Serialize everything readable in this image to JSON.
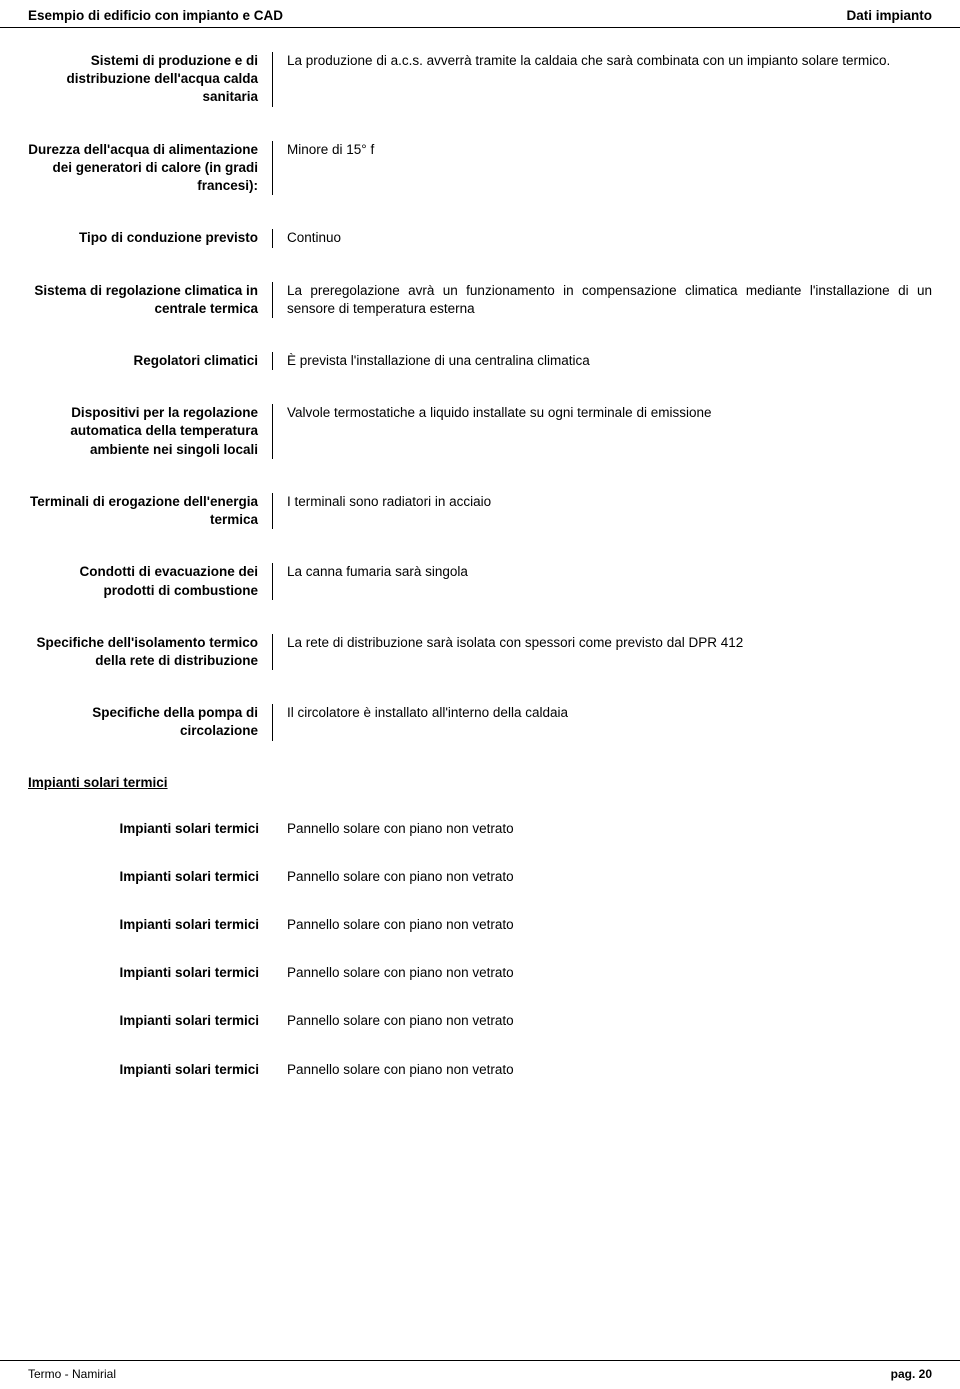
{
  "header": {
    "left": "Esempio di edificio con impianto e CAD",
    "right": "Dati impianto"
  },
  "rows": [
    {
      "label": "Sistemi di produzione e di distribuzione dell'acqua calda sanitaria",
      "value": "La produzione di a.c.s. avverrà tramite la caldaia che sarà combinata con un impianto solare termico."
    },
    {
      "label": "Durezza dell'acqua di alimentazione dei generatori di calore (in gradi francesi):",
      "value": "Minore di 15° f"
    },
    {
      "label": "Tipo di conduzione previsto",
      "value": "Continuo"
    },
    {
      "label": "Sistema di regolazione climatica in centrale termica",
      "value": "La preregolazione avrà un funzionamento in compensazione climatica mediante l'installazione di un sensore di temperatura esterna"
    },
    {
      "label": "Regolatori climatici",
      "value": "È prevista l'installazione di una centralina climatica"
    },
    {
      "label": "Dispositivi per la regolazione automatica della temperatura ambiente nei singoli locali",
      "value": "Valvole termostatiche a liquido installate su ogni terminale di emissione"
    },
    {
      "label": "Terminali di erogazione dell'energia termica",
      "value": "I terminali sono radiatori in acciaio"
    },
    {
      "label": "Condotti di evacuazione dei prodotti di combustione",
      "value": "La canna fumaria sarà singola"
    },
    {
      "label": "Specifiche dell'isolamento termico della rete di distribuzione",
      "value": "La rete di distribuzione sarà isolata con spessori come previsto dal DPR 412"
    },
    {
      "label": "Specifiche della pompa di circolazione",
      "value": "Il circolatore è installato all'interno della caldaia"
    }
  ],
  "section": {
    "heading": "Impianti solari termici",
    "items": [
      {
        "label": "Impianti solari termici",
        "value": "Pannello solare con piano non vetrato"
      },
      {
        "label": "Impianti solari termici",
        "value": "Pannello solare con piano non vetrato"
      },
      {
        "label": "Impianti solari termici",
        "value": "Pannello solare con piano non vetrato"
      },
      {
        "label": "Impianti solari termici",
        "value": "Pannello solare con piano non vetrato"
      },
      {
        "label": "Impianti solari termici",
        "value": "Pannello solare con piano non vetrato"
      },
      {
        "label": "Impianti solari termici",
        "value": "Pannello solare con piano non vetrato"
      }
    ]
  },
  "footer": {
    "left": "Termo - Namirial",
    "right": "pag. 20"
  }
}
